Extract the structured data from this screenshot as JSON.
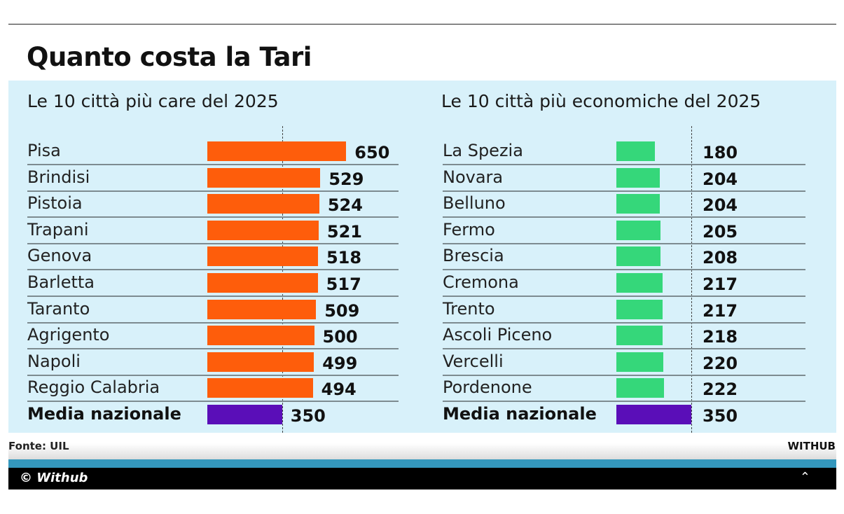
{
  "title": "Quanto costa la Tari",
  "source": "Fonte: UIL",
  "brand": "WITHUB",
  "credit": "© Withub",
  "collapse_icon": "chevron-up-icon",
  "colors": {
    "expensive": "#fe5d0b",
    "cheap": "#35d77a",
    "average": "#5a0eb8",
    "panel": "#d8f1fa"
  },
  "chart_data": [
    {
      "type": "bar",
      "orientation": "horizontal",
      "title": "Le 10 città più care del 2025",
      "categories": [
        "Pisa",
        "Brindisi",
        "Pistoia",
        "Trapani",
        "Genova",
        "Barletta",
        "Taranto",
        "Agrigento",
        "Napoli",
        "Reggio Calabria",
        "Media nazionale"
      ],
      "values": [
        650,
        529,
        524,
        521,
        518,
        517,
        509,
        500,
        499,
        494,
        350
      ],
      "reference_line": 350
    },
    {
      "type": "bar",
      "orientation": "horizontal",
      "title": "Le 10 città più economiche del 2025",
      "categories": [
        "La Spezia",
        "Novara",
        "Belluno",
        "Fermo",
        "Brescia",
        "Cremona",
        "Trento",
        "Ascoli Piceno",
        "Vercelli",
        "Pordenone",
        "Media nazionale"
      ],
      "values": [
        180,
        204,
        204,
        205,
        208,
        217,
        217,
        218,
        220,
        222,
        350
      ],
      "reference_line": 350
    }
  ]
}
